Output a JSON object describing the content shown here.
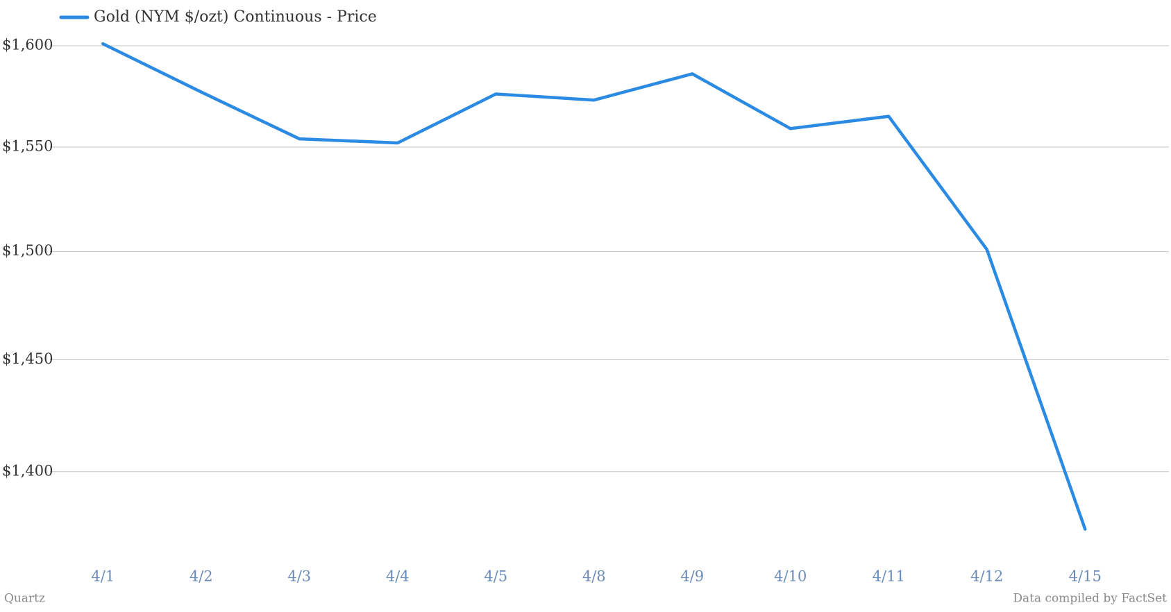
{
  "chart_data": {
    "type": "line",
    "categories": [
      "4/1",
      "4/2",
      "4/3",
      "4/4",
      "4/5",
      "4/8",
      "4/9",
      "4/10",
      "4/11",
      "4/12",
      "4/15"
    ],
    "series": [
      {
        "name": "Gold (NYM $/ozt) Continuous - Price",
        "color": "#2b8be3",
        "values": [
          1601,
          1577,
          1554,
          1552,
          1576,
          1573,
          1586,
          1559,
          1565,
          1501,
          1375
        ]
      }
    ],
    "ylim": [
      1360,
      1600
    ],
    "yticks": [
      {
        "value": 1400,
        "label": "$1,400"
      },
      {
        "value": 1450,
        "label": "$1,450"
      },
      {
        "value": 1500,
        "label": "$1,500"
      },
      {
        "value": 1550,
        "label": "$1,550"
      },
      {
        "value": 1600,
        "label": "$1,600"
      }
    ],
    "log_scale": true,
    "grid": true,
    "legend": "top-left",
    "source_left": "Quartz",
    "source_right": "Data compiled by FactSet"
  }
}
